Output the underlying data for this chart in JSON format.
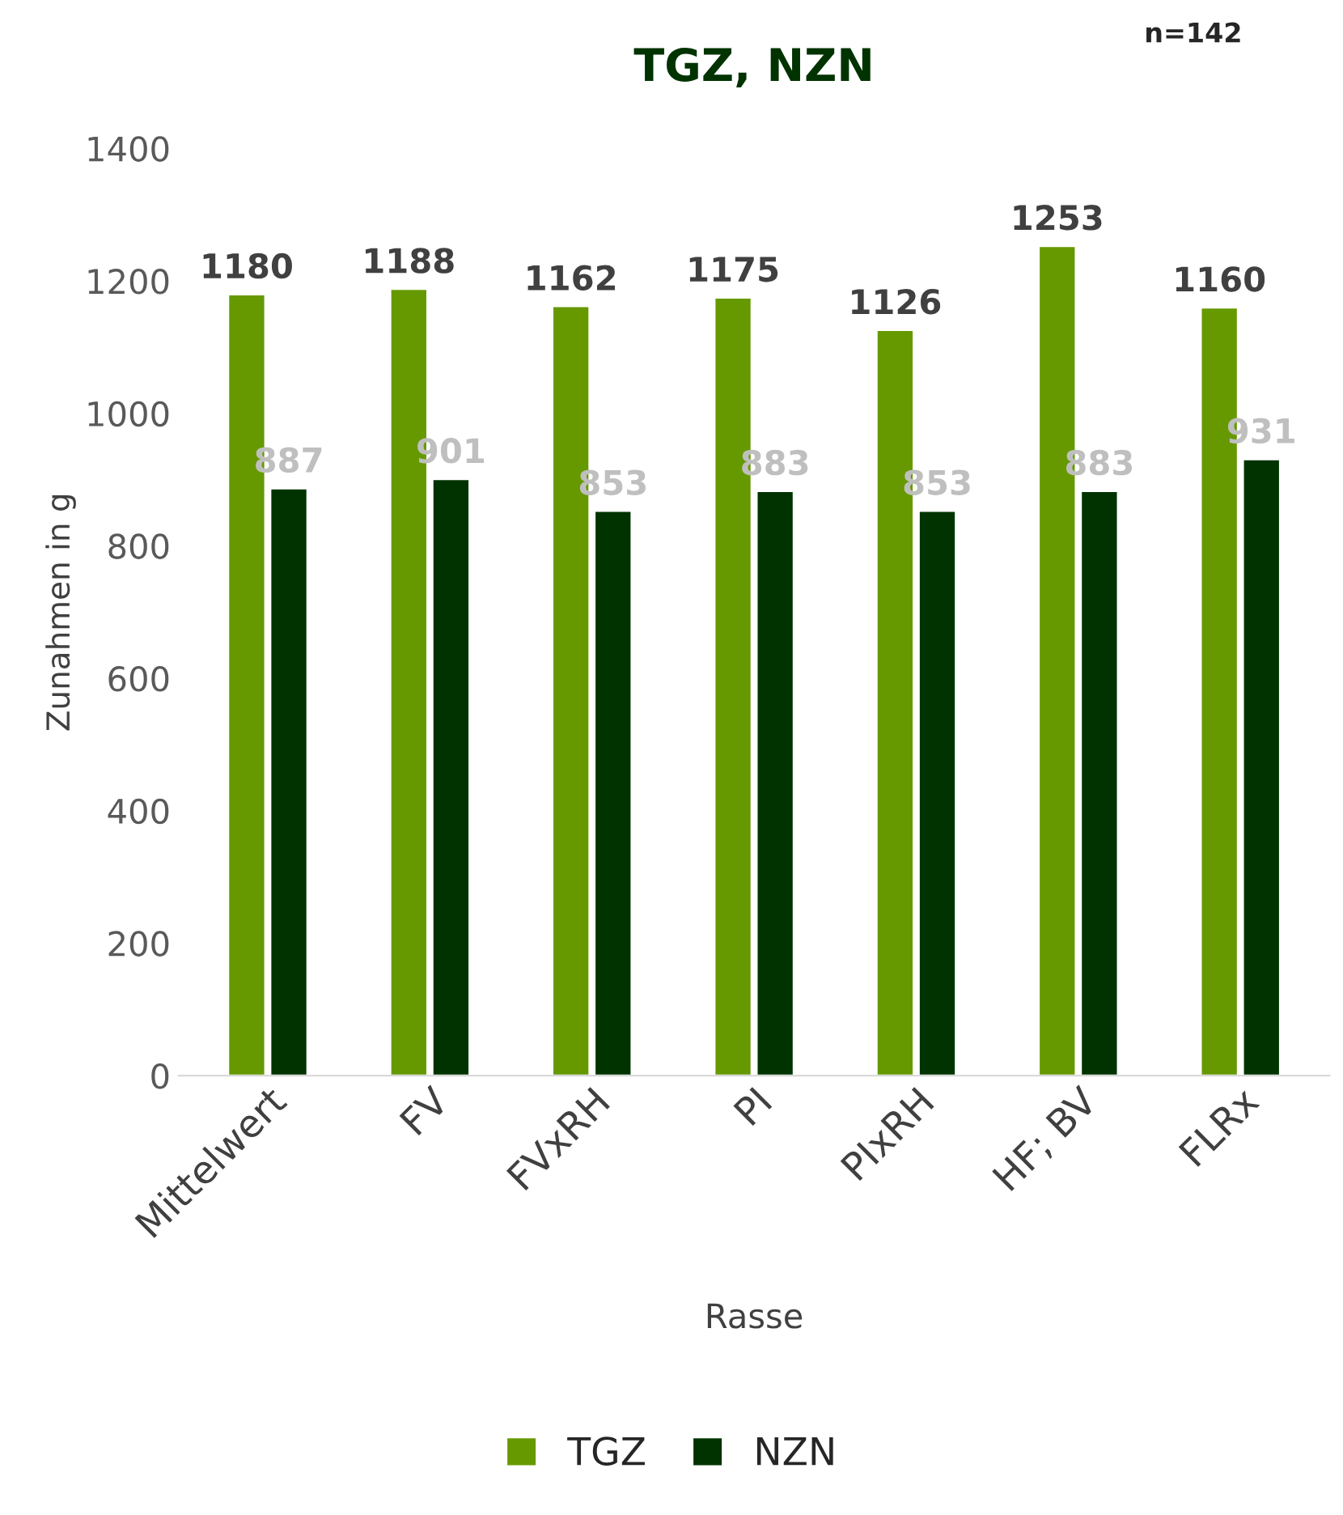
{
  "chart_data": {
    "type": "bar",
    "title": "TGZ, NZN",
    "xlabel": "Rasse",
    "ylabel": "Zunahmen in g",
    "annotations": [
      "n=142"
    ],
    "categories": [
      "Mittelwert",
      "FV",
      "FVxRH",
      "PI",
      "PIxRH",
      "HF; BV",
      "FLRx"
    ],
    "series": [
      {
        "name": "TGZ",
        "color": "#669900",
        "values": [
          1180,
          1188,
          1162,
          1175,
          1126,
          1253,
          1160
        ]
      },
      {
        "name": "NZN",
        "color": "#003300",
        "values": [
          887,
          901,
          853,
          883,
          853,
          883,
          931
        ]
      }
    ],
    "ylim": [
      0,
      1400
    ],
    "yticks": [
      0,
      200,
      400,
      600,
      800,
      1000,
      1200,
      1400
    ],
    "data_labels": true,
    "grid": false,
    "legend": "bottom"
  }
}
